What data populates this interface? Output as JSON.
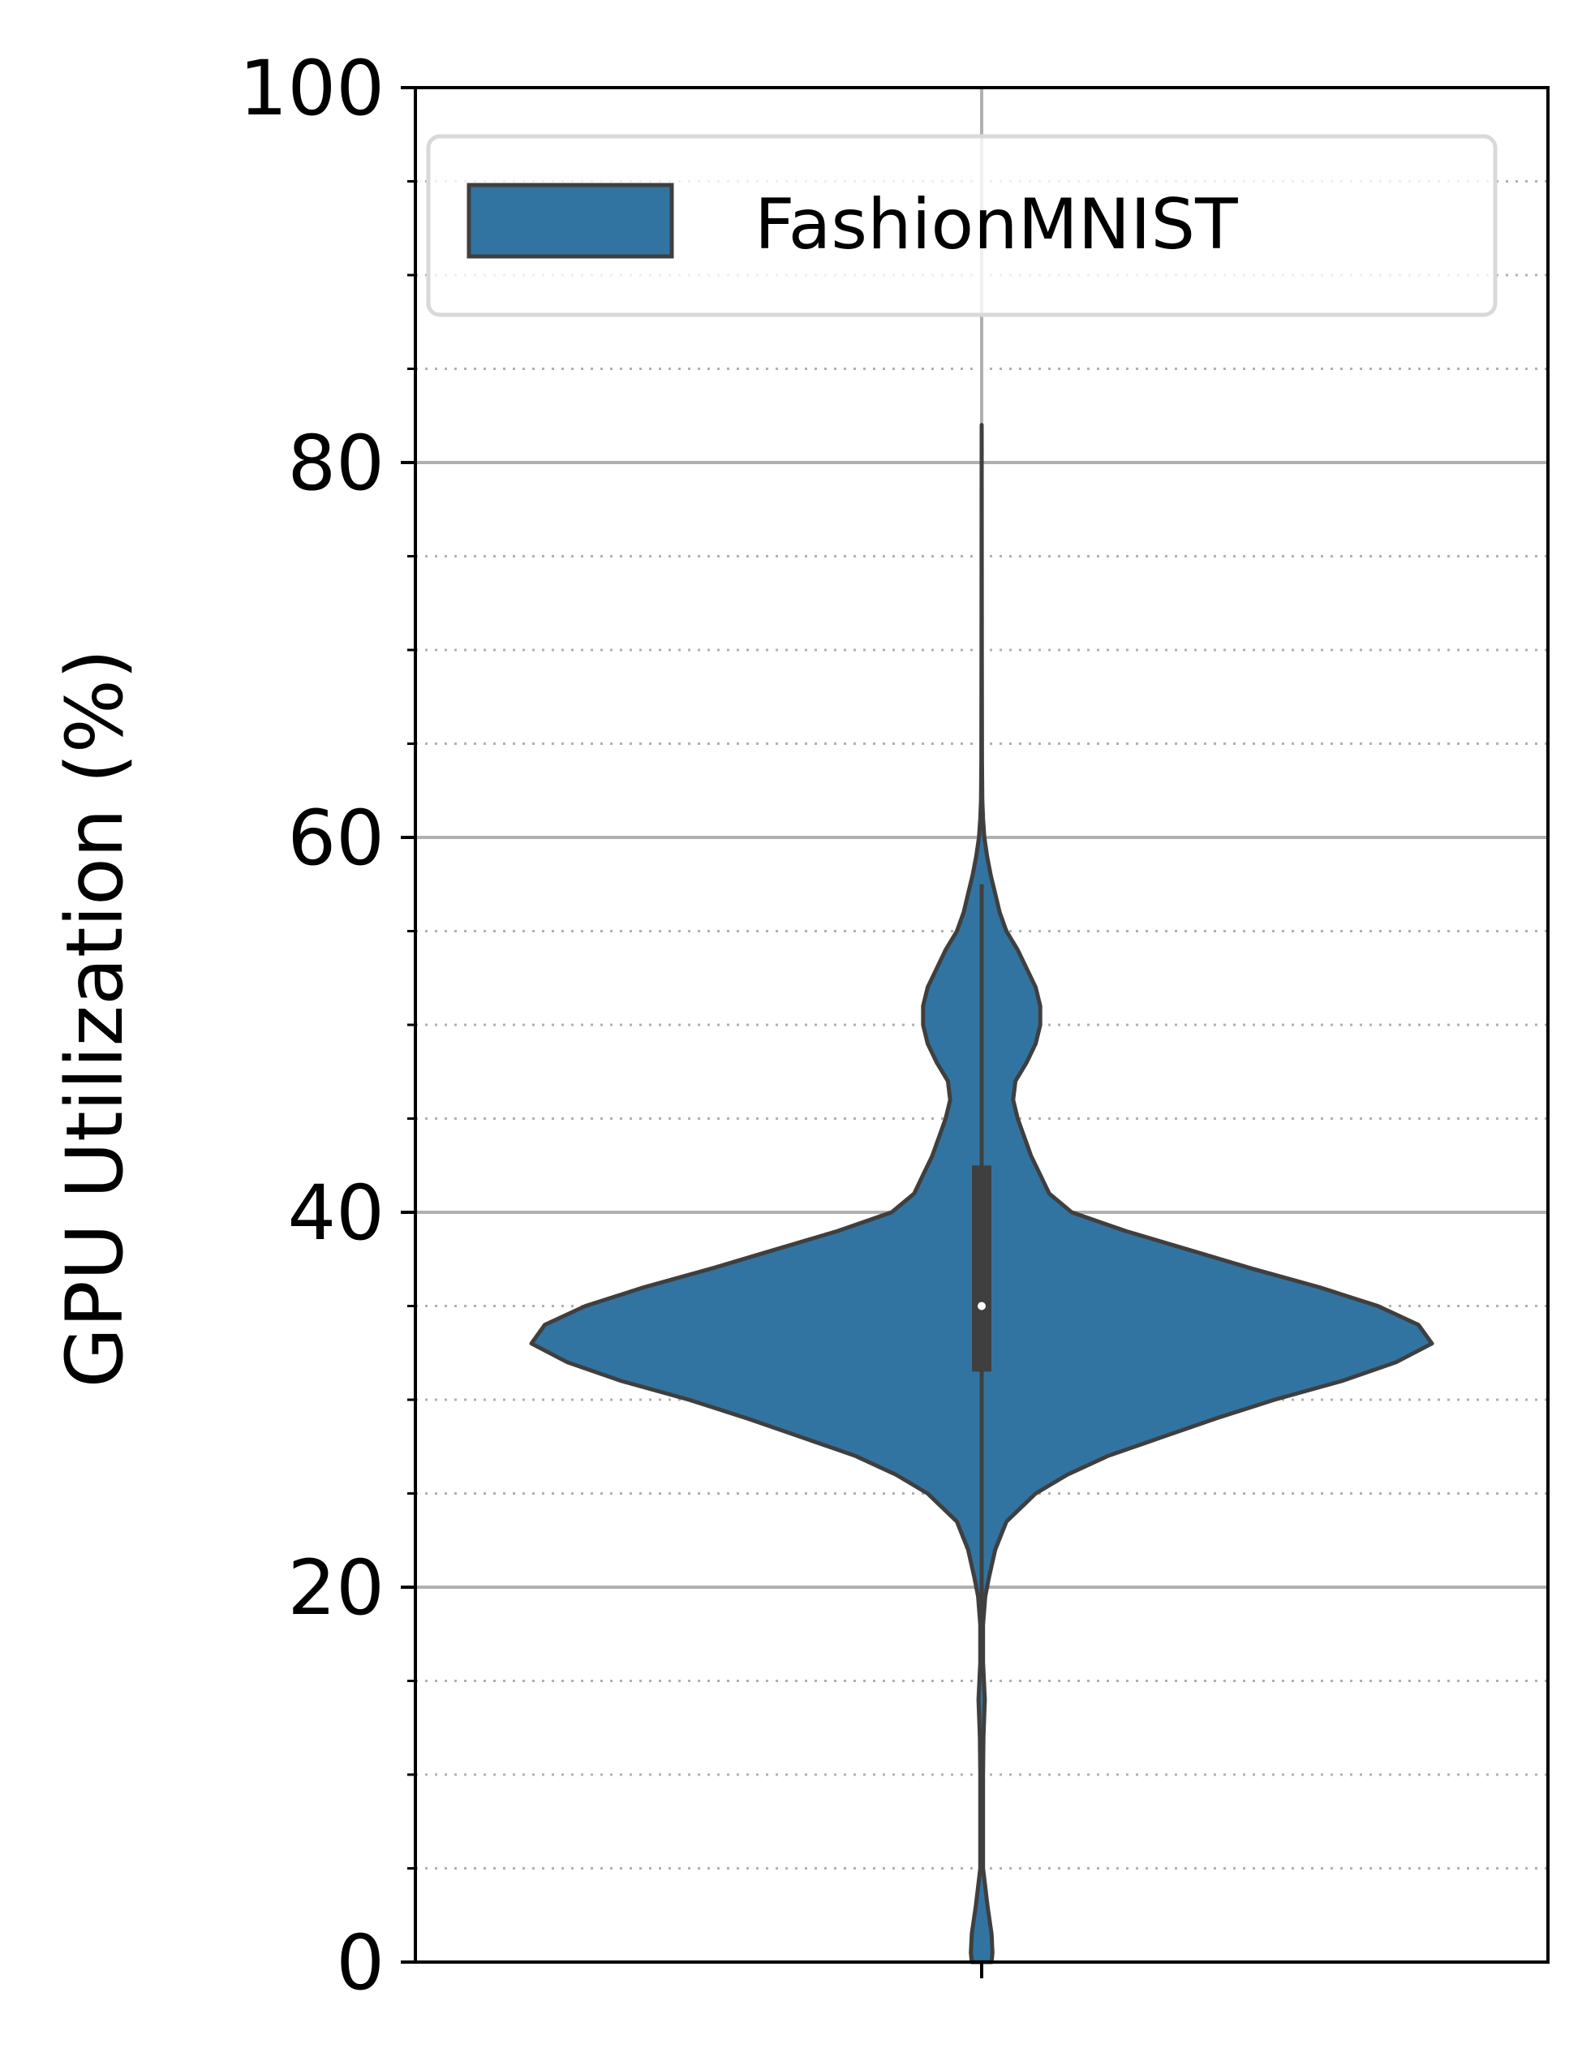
{
  "chart_data": {
    "type": "violin",
    "ylabel": "GPU Utilization (%)",
    "ylim": [
      0,
      100
    ],
    "yticks": [
      "0",
      "20",
      "40",
      "60",
      "80",
      "100"
    ],
    "minor_grid_step": 5,
    "grid": true,
    "legend": {
      "placement": "top",
      "entries": [
        "FashionMNIST"
      ]
    },
    "series": [
      {
        "name": "FashionMNIST",
        "color": "#3274a1",
        "outline": "#3f3f3f",
        "density_profile": [
          [
            0,
            0.022
          ],
          [
            0.5,
            0.024
          ],
          [
            1.5,
            0.022
          ],
          [
            3,
            0.013
          ],
          [
            5,
            0.003
          ],
          [
            8,
            0.003
          ],
          [
            10,
            0.003
          ],
          [
            12,
            0.004
          ],
          [
            14,
            0.007
          ],
          [
            16,
            0.003
          ],
          [
            18,
            0.003
          ],
          [
            19.5,
            0.008
          ],
          [
            20.5,
            0.016
          ],
          [
            22,
            0.03
          ],
          [
            23.5,
            0.055
          ],
          [
            25,
            0.12
          ],
          [
            26,
            0.19
          ],
          [
            27,
            0.28
          ],
          [
            28,
            0.4
          ],
          [
            29,
            0.52
          ],
          [
            30,
            0.65
          ],
          [
            31,
            0.8
          ],
          [
            32,
            0.92
          ],
          [
            33,
            1.0
          ],
          [
            34,
            0.97
          ],
          [
            35,
            0.88
          ],
          [
            36,
            0.75
          ],
          [
            37,
            0.6
          ],
          [
            38,
            0.46
          ],
          [
            39,
            0.32
          ],
          [
            40,
            0.2
          ],
          [
            41,
            0.15
          ],
          [
            42,
            0.13
          ],
          [
            43,
            0.11
          ],
          [
            44,
            0.095
          ],
          [
            45,
            0.08
          ],
          [
            46,
            0.07
          ],
          [
            47,
            0.075
          ],
          [
            48,
            0.1
          ],
          [
            49,
            0.12
          ],
          [
            50,
            0.13
          ],
          [
            51,
            0.13
          ],
          [
            52,
            0.12
          ],
          [
            53,
            0.1
          ],
          [
            54,
            0.08
          ],
          [
            55,
            0.055
          ],
          [
            56,
            0.04
          ],
          [
            57,
            0.03
          ],
          [
            58,
            0.02
          ],
          [
            59,
            0.012
          ],
          [
            60,
            0.006
          ],
          [
            61,
            0.003
          ],
          [
            62,
            0.0015
          ],
          [
            64,
            0.0008
          ],
          [
            70,
            0.0004
          ],
          [
            82,
            0.0
          ]
        ],
        "median": 35,
        "q1": 31.5,
        "q3": 42.5,
        "whisker_low": 17,
        "whisker_high": 57.5
      }
    ]
  }
}
